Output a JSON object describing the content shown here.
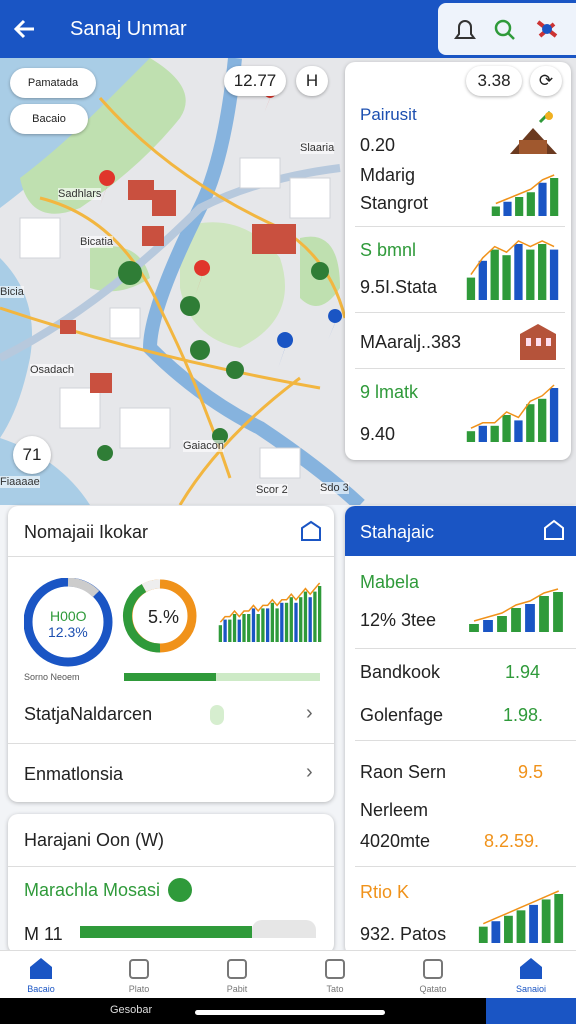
{
  "header": {
    "title": "Sanaj Unmar"
  },
  "map": {
    "chips": [
      "Pamatada",
      "Bacaio"
    ],
    "pills": [
      "12.77",
      "H",
      "3.38",
      "71"
    ],
    "labels": [
      "Sadhlars",
      "Bicatia",
      "Bicia",
      "Osadach",
      "Gaiacon",
      "Fiaaaae",
      "Slaaria",
      "Scor 2",
      "Sdo 3"
    ]
  },
  "panel": {
    "items": [
      {
        "title": "Pairusit",
        "value": "0.20"
      },
      {
        "title": "Mdarig",
        "value": "Stangrot",
        "bars": [
          2,
          3,
          4,
          5,
          7,
          8
        ]
      },
      {
        "title": "S bmnl",
        "value": "9.5I.Stata",
        "bars": [
          4,
          7,
          9,
          8,
          10,
          9,
          10,
          9
        ]
      },
      {
        "title": "MAaralj..383"
      },
      {
        "title": "9 lmatk",
        "value": "9.40",
        "bars": [
          2,
          3,
          3,
          5,
          4,
          7,
          8,
          10
        ]
      }
    ]
  },
  "overview": {
    "title": "Nomajaii Ikokar",
    "donut1": [
      "H00O",
      "12.3%"
    ],
    "donut2": "5.%",
    "caption": "Sorno Neoem",
    "bars": [
      3,
      4,
      4,
      5,
      4,
      5,
      5,
      6,
      5,
      6,
      6,
      7,
      6,
      7,
      7,
      8,
      7,
      8,
      9,
      8,
      9,
      10
    ],
    "rows": [
      "StatjaNaldarcen",
      "Enmatlonsia"
    ]
  },
  "summary": {
    "title": "Harajani Oon (W)",
    "subtitle": "Marachla Mosasi",
    "value": "M 11"
  },
  "stats": {
    "title": "Stahajaic",
    "rows": [
      {
        "name": "Mabela",
        "detail": "12% 3tee",
        "bars": [
          2,
          3,
          4,
          6,
          7,
          9,
          10
        ]
      },
      {
        "name": "Bandkook",
        "value": "1.94"
      },
      {
        "name": "Golenfage",
        "value": "1.98."
      },
      {
        "name": "Raon Sern",
        "value": "9.5"
      },
      {
        "name": "Nerleem",
        "detail": "4020mte",
        "value": "8.2.59."
      },
      {
        "name": "Rtio K",
        "detail": "932. Patos",
        "bars": [
          3,
          4,
          5,
          6,
          7,
          8,
          9
        ]
      }
    ]
  },
  "nav": {
    "tabs": [
      "Bacaio",
      "Plato",
      "Pabit",
      "Tato",
      "Qatato",
      "Sanaioi"
    ],
    "footer": "Gesobar"
  }
}
